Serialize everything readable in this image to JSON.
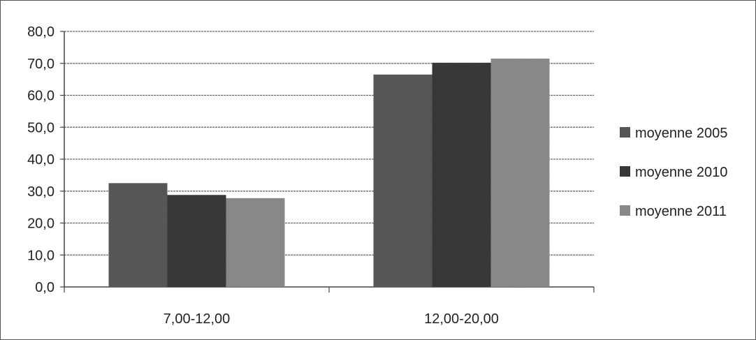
{
  "chart_data": {
    "type": "bar",
    "categories": [
      "7,00-12,00",
      "12,00-20,00"
    ],
    "series": [
      {
        "name": "moyenne 2005",
        "values": [
          32.5,
          66.5
        ]
      },
      {
        "name": "moyenne 2010",
        "values": [
          28.8,
          70.2
        ]
      },
      {
        "name": "moyenne 2011",
        "values": [
          27.8,
          71.5
        ]
      }
    ],
    "title": "",
    "xlabel": "",
    "ylabel": "",
    "ylim": [
      0,
      80
    ],
    "yticks": [
      "0,0",
      "10,0",
      "20,0",
      "30,0",
      "40,0",
      "50,0",
      "60,0",
      "70,0",
      "80,0"
    ],
    "grid": true,
    "legend_position": "right",
    "colors": {
      "moyenne 2005": "#5a5a5a",
      "moyenne 2010": "#3a3a3a",
      "moyenne 2011": "#8e8e8e"
    }
  }
}
